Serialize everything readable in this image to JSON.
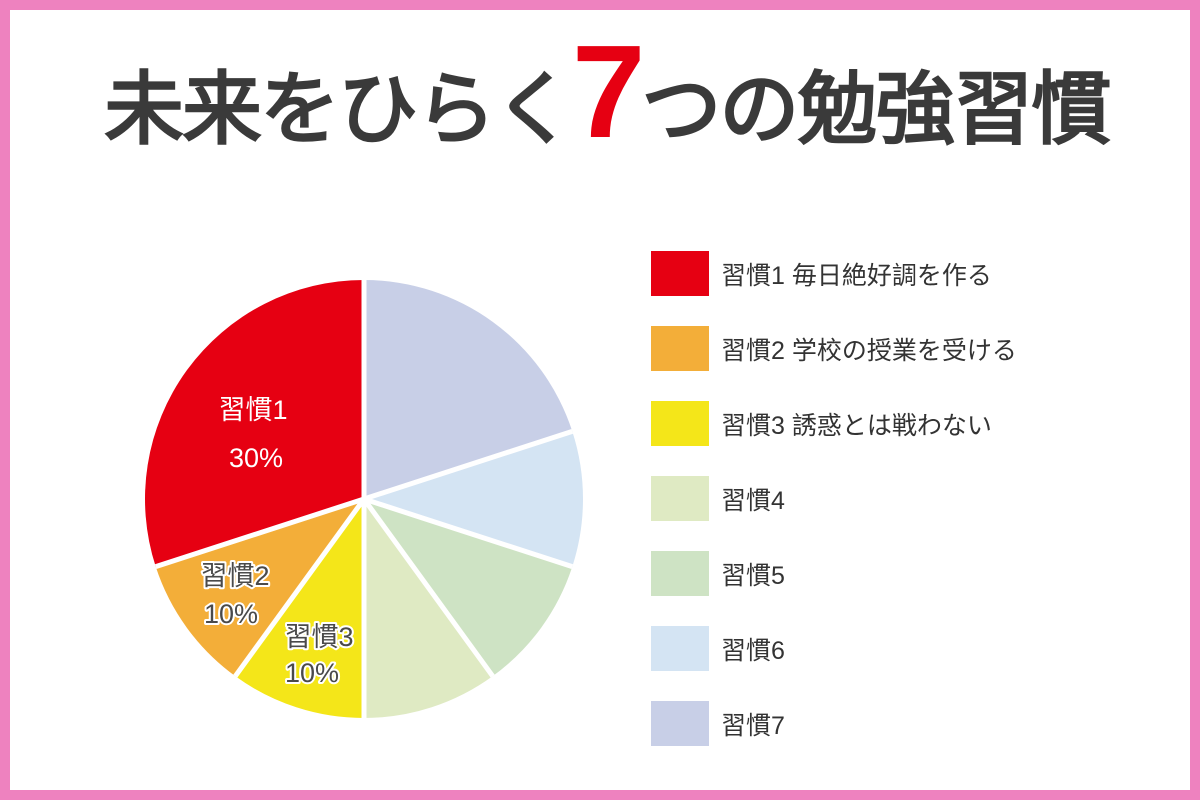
{
  "frame": {
    "border_color": "#ee82bf",
    "background_color": "#ffffff"
  },
  "title": {
    "prefix": "未来をひらく",
    "highlight": "7",
    "suffix": "つの勉強習慣",
    "text_color": "#3a3a3a",
    "highlight_color": "#e60012"
  },
  "chart_data": {
    "type": "pie",
    "title": "未来をひらく7つの勉強習慣",
    "start_angle_deg": 0,
    "direction": "counterclockwise",
    "total": 100,
    "legend_position": "right",
    "separator_color": "#ffffff",
    "pie_label_colors": {
      "white_fill": "#ffffff",
      "outlined_fill": "#4a4a4a",
      "outline_color": "#ffffff"
    },
    "slices": [
      {
        "label": "習慣1",
        "description": "毎日絶好調を作る",
        "value": 30,
        "percent_label": "30%",
        "color": "#e60012",
        "show_pie_label": true,
        "pie_label_style": "white"
      },
      {
        "label": "習慣2",
        "description": "学校の授業を受ける",
        "value": 10,
        "percent_label": "10%",
        "color": "#f3ae39",
        "show_pie_label": true,
        "pie_label_style": "outlined"
      },
      {
        "label": "習慣3",
        "description": "誘惑とは戦わない",
        "value": 10,
        "percent_label": "10%",
        "color": "#f4e619",
        "show_pie_label": true,
        "pie_label_style": "outlined"
      },
      {
        "label": "習慣4",
        "description": "",
        "value": 10,
        "percent_label": "10%",
        "color": "#dfeac3",
        "show_pie_label": false,
        "pie_label_style": "none"
      },
      {
        "label": "習慣5",
        "description": "",
        "value": 10,
        "percent_label": "10%",
        "color": "#cee3c4",
        "show_pie_label": false,
        "pie_label_style": "none"
      },
      {
        "label": "習慣6",
        "description": "",
        "value": 10,
        "percent_label": "10%",
        "color": "#d4e4f3",
        "show_pie_label": false,
        "pie_label_style": "none"
      },
      {
        "label": "習慣7",
        "description": "",
        "value": 20,
        "percent_label": "20%",
        "color": "#c8cfe7",
        "show_pie_label": false,
        "pie_label_style": "none"
      }
    ]
  }
}
